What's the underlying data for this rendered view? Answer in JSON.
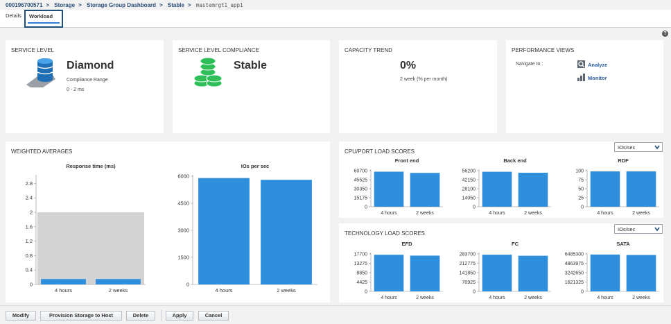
{
  "breadcrumb": {
    "items": [
      "000196700571",
      "Storage",
      "Storage Group Dashboard",
      "Stable"
    ],
    "current": "mastemrgt1_app1"
  },
  "tabs": [
    {
      "label": "Details"
    },
    {
      "label": "Workload"
    }
  ],
  "help_label": "?",
  "service_level": {
    "title": "SERVICE LEVEL",
    "name": "Diamond",
    "range_label": "Compliance Range",
    "range_value": "0 - 2 ms"
  },
  "compliance": {
    "title": "SERVICE LEVEL COMPLIANCE",
    "status": "Stable"
  },
  "capacity": {
    "title": "CAPACITY TREND",
    "value": "0%",
    "subtitle": "2 week (% per month)"
  },
  "performance": {
    "title": "PERFORMANCE VIEWS",
    "navigate_label": "Navigate to :",
    "analyze": "Analyze",
    "monitor": "Monitor"
  },
  "weighted": {
    "title": "WEIGHTED AVERAGES"
  },
  "cpu_load": {
    "title": "CPU/PORT LOAD SCORES",
    "unit": "IOs/sec"
  },
  "tech_load": {
    "title": "TECHNOLOGY LOAD SCORES",
    "unit": "IOs/sec"
  },
  "chart_data": [
    {
      "type": "bar",
      "title": "Response time (ms)",
      "categories": [
        "4 hours",
        "2 weeks"
      ],
      "values": [
        0.15,
        0.15
      ],
      "ylim": [
        0,
        3
      ],
      "yticks": [
        "0",
        "0.4",
        "0.8",
        "1.2",
        "1.6",
        "2",
        "2.4",
        "2.8"
      ],
      "band": [
        0,
        2
      ]
    },
    {
      "type": "bar",
      "title": "IOs per sec",
      "categories": [
        "4 hours",
        "2 weeks"
      ],
      "values": [
        5900,
        5800
      ],
      "ylim": [
        0,
        6000
      ],
      "yticks": [
        "0",
        "1500",
        "3000",
        "4500",
        "6000"
      ]
    },
    {
      "type": "bar",
      "title": "Front end",
      "categories": [
        "4 hours",
        "2 weeks"
      ],
      "values": [
        59000,
        57000
      ],
      "ylim": [
        0,
        60700
      ],
      "yticks": [
        "0",
        "15175",
        "30350",
        "45525",
        "60700"
      ]
    },
    {
      "type": "bar",
      "title": "Back end",
      "categories": [
        "4 hours",
        "2 weeks"
      ],
      "values": [
        54500,
        53000
      ],
      "ylim": [
        0,
        56200
      ],
      "yticks": [
        "0",
        "14050",
        "28100",
        "42150",
        "56200"
      ]
    },
    {
      "type": "bar",
      "title": "RDF",
      "categories": [
        "4 hours",
        "2 weeks"
      ],
      "values": [
        98,
        98
      ],
      "ylim": [
        0,
        100
      ],
      "yticks": [
        "0",
        "25",
        "50",
        "75",
        "100"
      ]
    },
    {
      "type": "bar",
      "title": "EFD",
      "categories": [
        "4 hours",
        "2 weeks"
      ],
      "values": [
        17300,
        16900
      ],
      "ylim": [
        0,
        17700
      ],
      "yticks": [
        "0",
        "4425",
        "8850",
        "13275",
        "17700"
      ]
    },
    {
      "type": "bar",
      "title": "FC",
      "categories": [
        "4 hours",
        "2 weeks"
      ],
      "values": [
        278000,
        270000
      ],
      "ylim": [
        0,
        283700
      ],
      "yticks": [
        "0",
        "70925",
        "141850",
        "212775",
        "283700"
      ]
    },
    {
      "type": "bar",
      "title": "SATA",
      "categories": [
        "4 hours",
        "2 weeks"
      ],
      "values": [
        6380000,
        6300000
      ],
      "ylim": [
        0,
        6485300
      ],
      "yticks": [
        "0",
        "1621325",
        "3242650",
        "4863975",
        "6485300"
      ]
    }
  ],
  "footer": {
    "modify": "Modify",
    "provision": "Provision Storage to Host",
    "delete": "Delete",
    "apply": "Apply",
    "cancel": "Cancel"
  },
  "colors": {
    "bar": "#2f8fdd",
    "link": "#2a5ba3",
    "accent": "#1f4e79",
    "band": "#d3d3d3"
  }
}
